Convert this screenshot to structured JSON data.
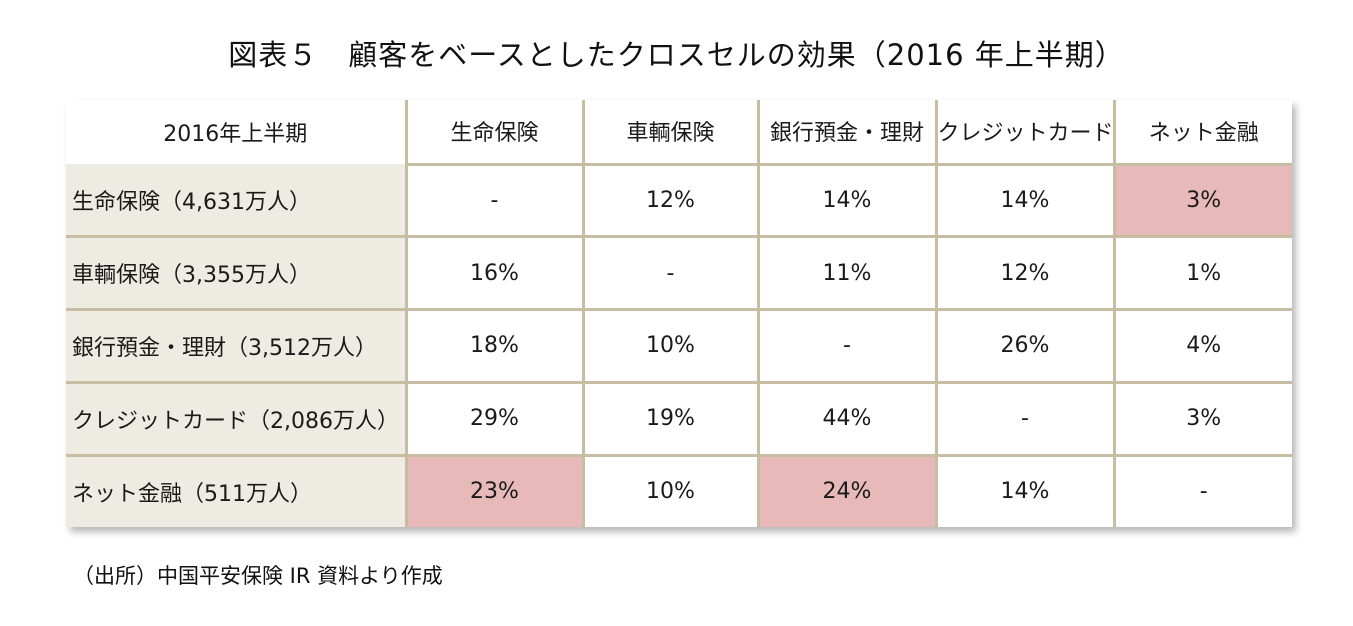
{
  "title": "図表５　顧客をベースとしたクロスセルの効果（2016 年上半期）",
  "source": "（出所）中国平安保険 IR 資料より作成",
  "colors": {
    "grid": "#c7bda2",
    "row_header_bg": "#eeebe2",
    "highlight": "#e7b9b9"
  },
  "chart_data": {
    "type": "table",
    "title": "図表５　顧客をベースとしたクロスセルの効果（2016 年上半期）",
    "corner_label": "2016年上半期",
    "columns": [
      "生命保険",
      "車輌保険",
      "銀行預金・理財",
      "クレジットカード",
      "ネット金融"
    ],
    "rows": [
      {
        "label": "生命保険（4,631万人）",
        "cells": [
          "-",
          "12%",
          "14%",
          "14%",
          "3%"
        ],
        "highlight": [
          false,
          false,
          false,
          false,
          true
        ]
      },
      {
        "label": "車輌保険（3,355万人）",
        "cells": [
          "16%",
          "-",
          "11%",
          "12%",
          "1%"
        ],
        "highlight": [
          false,
          false,
          false,
          false,
          false
        ]
      },
      {
        "label": "銀行預金・理財（3,512万人）",
        "cells": [
          "18%",
          "10%",
          "-",
          "26%",
          "4%"
        ],
        "highlight": [
          false,
          false,
          false,
          false,
          false
        ]
      },
      {
        "label": "クレジットカード（2,086万人）",
        "cells": [
          "29%",
          "19%",
          "44%",
          "-",
          "3%"
        ],
        "highlight": [
          false,
          false,
          false,
          false,
          false
        ]
      },
      {
        "label": "ネット金融（511万人）",
        "cells": [
          "23%",
          "10%",
          "24%",
          "14%",
          "-"
        ],
        "highlight": [
          true,
          false,
          true,
          false,
          false
        ]
      }
    ]
  }
}
